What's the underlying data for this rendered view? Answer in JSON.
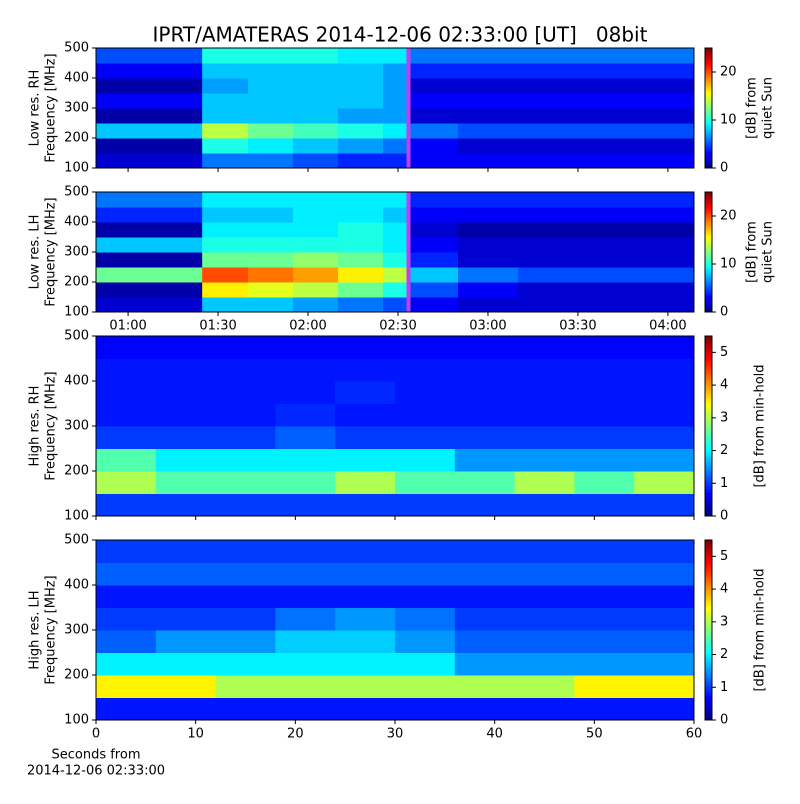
{
  "chart_data": [
    {
      "type": "heatmap",
      "title": "IPRT/AMATERAS 2014-12-06 02:33:00 [UT]   08bit",
      "ylabel": [
        "Low res. RH",
        "Frequency [MHz]"
      ],
      "clabel": [
        "[dB] from",
        "quiet Sun"
      ],
      "xlim": [
        49.3,
        248.7
      ],
      "ylim": [
        100,
        500
      ],
      "yticks": [
        100,
        200,
        300,
        400,
        500
      ],
      "clim": [
        0,
        25
      ],
      "cticks": [
        0,
        10,
        20
      ],
      "colormap": "jet",
      "highlight_x": 153.5,
      "highlight_color": "#c040f0",
      "x_edges": [
        49.3,
        84.7,
        100,
        115,
        130,
        145,
        153.5,
        170,
        190,
        210,
        230,
        248.7
      ],
      "y_edges": [
        100,
        150,
        200,
        250,
        300,
        350,
        400,
        450,
        500
      ],
      "z": [
        [
          2,
          6,
          6,
          5,
          4,
          4,
          3,
          3,
          3,
          3,
          3
        ],
        [
          1,
          10,
          9,
          8,
          7,
          6,
          3,
          2,
          2,
          2,
          2
        ],
        [
          8,
          14,
          12,
          11,
          10,
          9,
          6,
          5,
          5,
          5,
          5
        ],
        [
          1,
          8,
          8,
          8,
          7,
          7,
          2,
          2,
          2,
          2,
          2
        ],
        [
          3,
          8,
          8,
          8,
          8,
          7,
          3,
          3,
          3,
          3,
          3
        ],
        [
          1,
          7,
          8,
          8,
          8,
          7,
          2,
          2,
          2,
          2,
          2
        ],
        [
          3,
          8,
          8,
          8,
          8,
          7,
          4,
          4,
          4,
          4,
          4
        ],
        [
          5,
          10,
          10,
          10,
          9,
          9,
          6,
          6,
          6,
          6,
          6
        ]
      ]
    },
    {
      "type": "heatmap",
      "ylabel": [
        "Low res. LH",
        "Frequency [MHz]"
      ],
      "clabel": [
        "[dB] from",
        "quiet Sun"
      ],
      "xlim": [
        49.3,
        248.7
      ],
      "xticks": [
        {
          "value": 60,
          "label": "01:00"
        },
        {
          "value": 90,
          "label": "01:30"
        },
        {
          "value": 120,
          "label": "02:00"
        },
        {
          "value": 150,
          "label": "02:30"
        },
        {
          "value": 180,
          "label": "03:00"
        },
        {
          "value": 210,
          "label": "03:30"
        },
        {
          "value": 240,
          "label": "04:00"
        }
      ],
      "ylim": [
        100,
        500
      ],
      "yticks": [
        100,
        200,
        300,
        400,
        500
      ],
      "clim": [
        0,
        25
      ],
      "cticks": [
        0,
        10,
        20
      ],
      "colormap": "jet",
      "highlight_x": 153.5,
      "highlight_color": "#c040f0",
      "x_edges": [
        49.3,
        84.7,
        100,
        115,
        130,
        145,
        153.5,
        170,
        190,
        210,
        230,
        248.7
      ],
      "y_edges": [
        100,
        150,
        200,
        250,
        300,
        350,
        400,
        450,
        500
      ],
      "z": [
        [
          2,
          8,
          8,
          7,
          6,
          5,
          3,
          2,
          2,
          2,
          2
        ],
        [
          1,
          16,
          15,
          14,
          12,
          10,
          5,
          3,
          2,
          2,
          2
        ],
        [
          12,
          20,
          19,
          18,
          16,
          14,
          8,
          6,
          5,
          5,
          5
        ],
        [
          1,
          12,
          12,
          13,
          12,
          10,
          4,
          2,
          2,
          2,
          2
        ],
        [
          8,
          10,
          10,
          10,
          10,
          9,
          3,
          2,
          2,
          2,
          2
        ],
        [
          1,
          9,
          9,
          9,
          10,
          9,
          2,
          1,
          1,
          1,
          1
        ],
        [
          4,
          8,
          8,
          9,
          9,
          8,
          3,
          3,
          3,
          3,
          3
        ],
        [
          6,
          9,
          9,
          9,
          9,
          9,
          4,
          4,
          4,
          4,
          4
        ]
      ]
    },
    {
      "type": "heatmap",
      "ylabel": [
        "High res. RH",
        "Frequency [MHz]"
      ],
      "clabel": [
        "[dB] from min-hold"
      ],
      "xlim": [
        0,
        60
      ],
      "ylim": [
        100,
        500
      ],
      "yticks": [
        100,
        200,
        300,
        400,
        500
      ],
      "clim": [
        0,
        5.5
      ],
      "cticks": [
        0,
        1,
        2,
        3,
        4,
        5
      ],
      "colormap": "jet",
      "x_edges": [
        0,
        6,
        12,
        18,
        24,
        30,
        36,
        42,
        48,
        54,
        60
      ],
      "y_edges": [
        100,
        150,
        200,
        250,
        300,
        350,
        400,
        450,
        500
      ],
      "z": [
        [
          1,
          1,
          1,
          1,
          1,
          1,
          1,
          1,
          1,
          1
        ],
        [
          3,
          2.5,
          2.5,
          2.5,
          3,
          2.5,
          2.5,
          3,
          2.5,
          3
        ],
        [
          2.5,
          2,
          2,
          2,
          2,
          2,
          1.5,
          1.5,
          1.5,
          1.5
        ],
        [
          1,
          1,
          1,
          1.2,
          1,
          1,
          1,
          1,
          1,
          1
        ],
        [
          0.8,
          0.8,
          0.8,
          0.9,
          0.8,
          0.8,
          0.8,
          0.8,
          0.8,
          0.8
        ],
        [
          0.8,
          0.8,
          0.8,
          0.8,
          0.9,
          0.8,
          0.8,
          0.8,
          0.8,
          0.8
        ],
        [
          0.8,
          0.8,
          0.8,
          0.8,
          0.8,
          0.8,
          0.8,
          0.8,
          0.8,
          0.8
        ],
        [
          0.7,
          0.7,
          0.7,
          0.7,
          0.7,
          0.7,
          0.7,
          0.7,
          0.7,
          0.7
        ]
      ]
    },
    {
      "type": "heatmap",
      "ylabel": [
        "High res. LH",
        "Frequency [MHz]"
      ],
      "clabel": [
        "[dB] from min-hold"
      ],
      "xlabel": [
        "Seconds from",
        "2014-12-06 02:33:00"
      ],
      "xlim": [
        0,
        60
      ],
      "xticks": [
        0,
        10,
        20,
        30,
        40,
        50,
        60
      ],
      "ylim": [
        100,
        500
      ],
      "yticks": [
        100,
        200,
        300,
        400,
        500
      ],
      "clim": [
        0,
        5.5
      ],
      "cticks": [
        0,
        1,
        2,
        3,
        4,
        5
      ],
      "colormap": "jet",
      "x_edges": [
        0,
        6,
        12,
        18,
        24,
        30,
        36,
        42,
        48,
        54,
        60
      ],
      "y_edges": [
        100,
        150,
        200,
        250,
        300,
        350,
        400,
        450,
        500
      ],
      "z": [
        [
          0.8,
          0.8,
          0.8,
          0.8,
          0.8,
          0.8,
          0.8,
          0.8,
          0.8,
          0.8
        ],
        [
          3.5,
          3.5,
          3,
          3,
          3,
          3,
          3,
          3,
          3.5,
          3.5
        ],
        [
          2,
          2,
          2,
          2,
          2,
          2,
          1.5,
          1.5,
          1.5,
          1.5
        ],
        [
          1.2,
          1.5,
          1.5,
          1.8,
          1.8,
          1.5,
          1.2,
          1.2,
          1.2,
          1.2
        ],
        [
          1,
          1,
          1,
          1.3,
          1.5,
          1.3,
          1,
          1,
          1,
          1
        ],
        [
          0.8,
          0.8,
          0.8,
          0.8,
          0.8,
          0.8,
          0.8,
          0.8,
          0.8,
          0.8
        ],
        [
          1.2,
          1.2,
          1.2,
          1.2,
          1.2,
          1.2,
          1.2,
          1.2,
          1.2,
          1.2
        ],
        [
          1,
          1,
          1,
          1,
          1,
          1,
          1,
          1,
          1,
          1
        ]
      ]
    }
  ]
}
